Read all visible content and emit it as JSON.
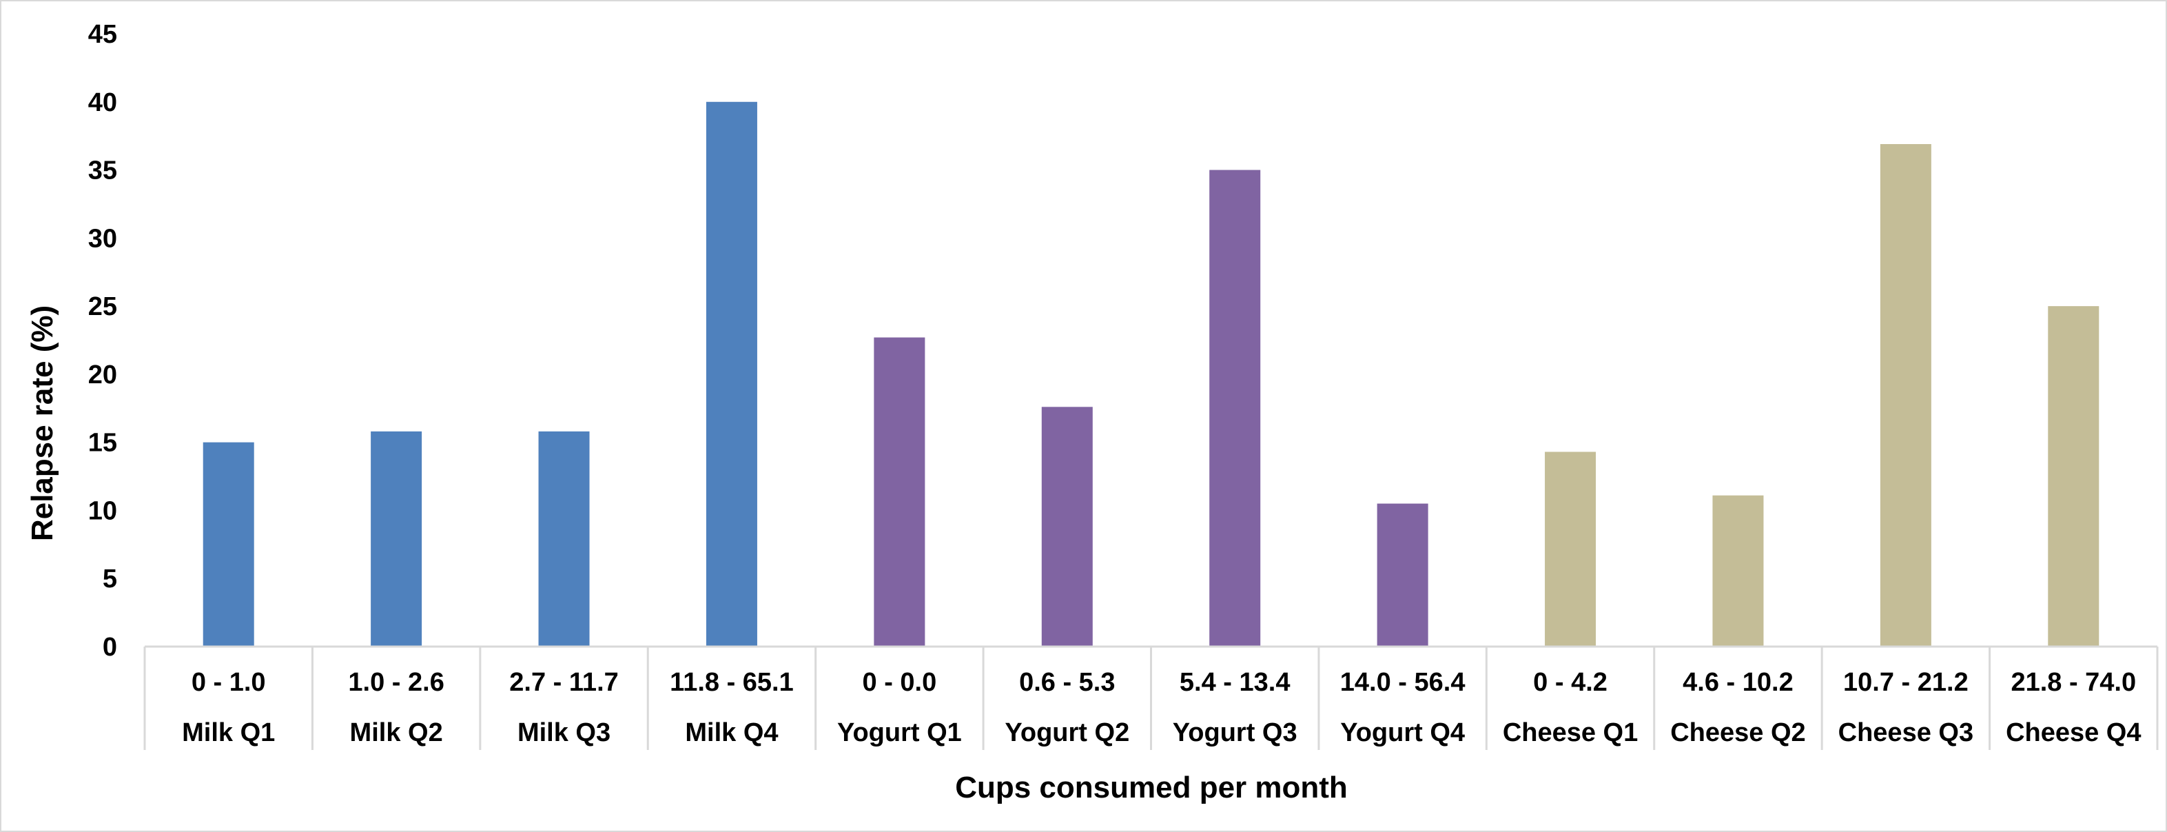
{
  "chart_data": {
    "type": "bar",
    "title": "",
    "xlabel": "Cups consumed per month",
    "ylabel": "Relapse rate (%)",
    "ylim": [
      0,
      45
    ],
    "yticks": [
      0,
      5,
      10,
      15,
      20,
      25,
      30,
      35,
      40,
      45
    ],
    "grid": false,
    "legend": "none",
    "categories": [
      {
        "range": "0 - 1.0",
        "group": "Milk Q1",
        "value": 15.0,
        "color": "#4f81bd"
      },
      {
        "range": "1.0 - 2.6",
        "group": "Milk Q2",
        "value": 15.8,
        "color": "#4f81bd"
      },
      {
        "range": "2.7 - 11.7",
        "group": "Milk Q3",
        "value": 15.8,
        "color": "#4f81bd"
      },
      {
        "range": "11.8 - 65.1",
        "group": "Milk Q4",
        "value": 40.0,
        "color": "#4f81bd"
      },
      {
        "range": "0 - 0.0",
        "group": "Yogurt Q1",
        "value": 22.7,
        "color": "#8064a2"
      },
      {
        "range": "0.6 - 5.3",
        "group": "Yogurt Q2",
        "value": 17.6,
        "color": "#8064a2"
      },
      {
        "range": "5.4 - 13.4",
        "group": "Yogurt Q3",
        "value": 35.0,
        "color": "#8064a2"
      },
      {
        "range": "14.0 - 56.4",
        "group": "Yogurt Q4",
        "value": 10.5,
        "color": "#8064a2"
      },
      {
        "range": "0 - 4.2",
        "group": "Cheese Q1",
        "value": 14.3,
        "color": "#c4bd97"
      },
      {
        "range": "4.6 - 10.2",
        "group": "Cheese Q2",
        "value": 11.1,
        "color": "#c4bd97"
      },
      {
        "range": "10.7 - 21.2",
        "group": "Cheese Q3",
        "value": 36.9,
        "color": "#c4bd97"
      },
      {
        "range": "21.8 - 74.0",
        "group": "Cheese Q4",
        "value": 25.0,
        "color": "#c4bd97"
      }
    ]
  }
}
